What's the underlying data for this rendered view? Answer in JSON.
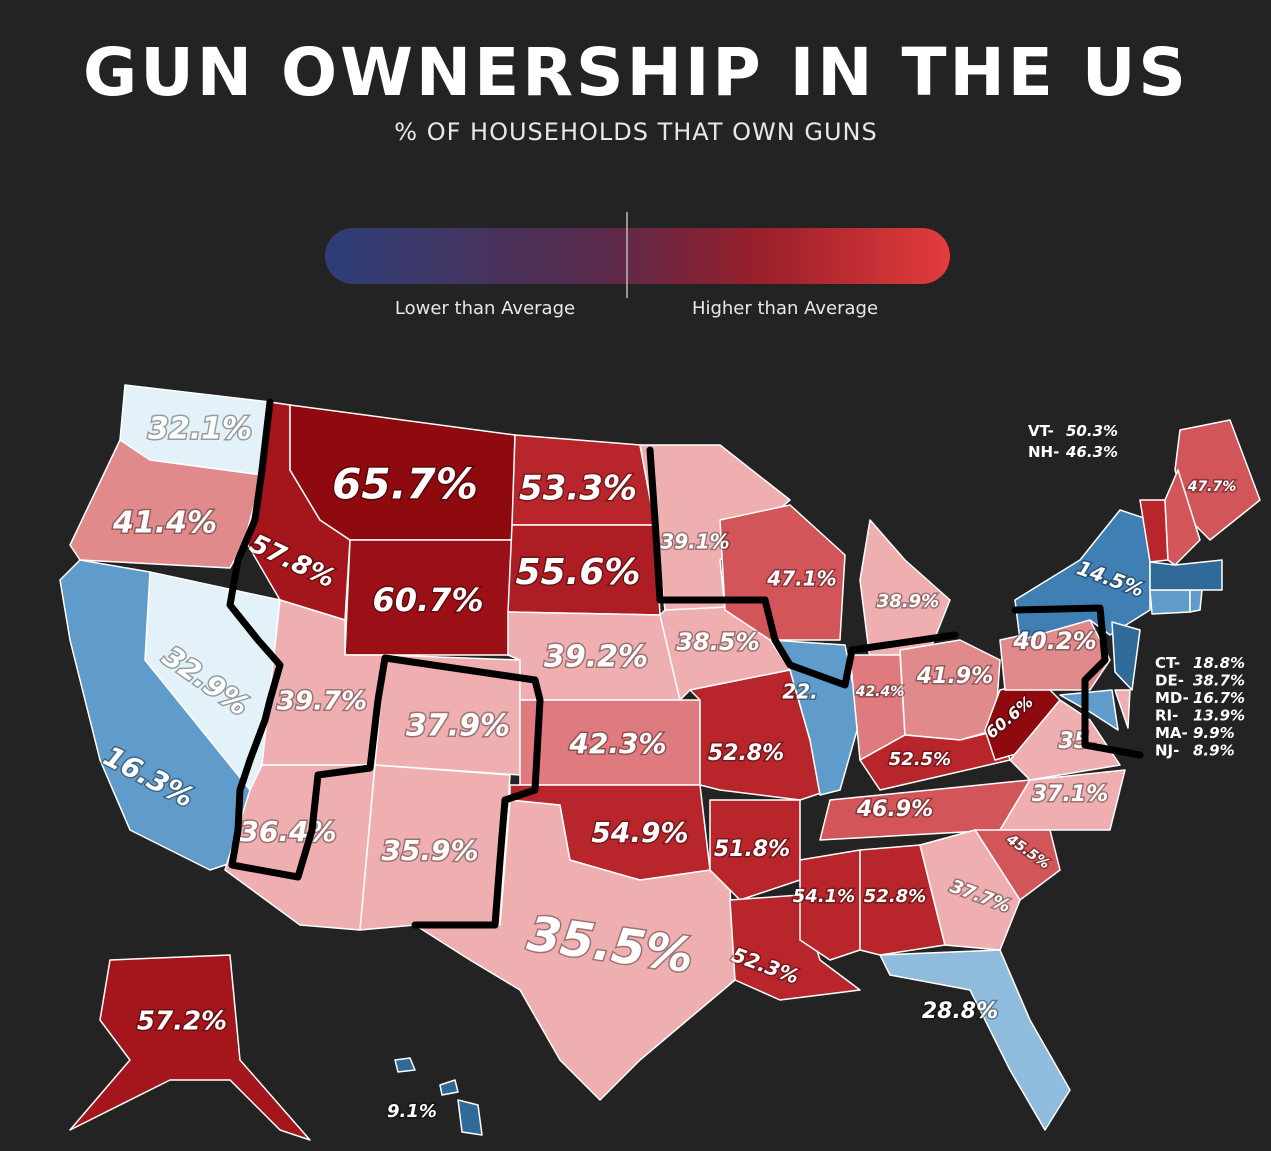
{
  "header": {
    "title": "GUN OWNERSHIP IN THE US",
    "subtitle": "% OF HOUSEHOLDS THAT OWN GUNS"
  },
  "legend": {
    "low": "Lower than Average",
    "high": "Higher than Average"
  },
  "states": [
    {
      "label": "32.1%",
      "color": "#e3f1f8"
    },
    {
      "label": "41.4%",
      "color": "#e08a8c"
    },
    {
      "label": "57.8%",
      "color": "#a5161c"
    },
    {
      "label": "65.7%",
      "color": "#8e0a0f"
    },
    {
      "label": "53.3%",
      "color": "#b8262c"
    },
    {
      "label": "60.7%",
      "color": "#9b1016"
    },
    {
      "label": "55.6%",
      "color": "#ad1d23"
    },
    {
      "label": "32.9%",
      "color": "#e3f1f8"
    },
    {
      "label": "16.3%",
      "color": "#5f9ccb"
    },
    {
      "label": "39.7%",
      "color": "#efaeb0"
    },
    {
      "label": "37.9%",
      "color": "#efaeb0"
    },
    {
      "label": "39.2%",
      "color": "#efaeb0"
    },
    {
      "label": "42.3%",
      "color": "#df7b7e"
    },
    {
      "label": "36.4%",
      "color": "#efaeb0"
    },
    {
      "label": "35.9%",
      "color": "#efaeb0"
    },
    {
      "label": "35.5%",
      "color": "#efaeb0"
    },
    {
      "label": "54.9%",
      "color": "#b8262c"
    },
    {
      "label": "39.1%",
      "color": "#efaeb0"
    },
    {
      "label": "38.5%",
      "color": "#efaeb0"
    },
    {
      "label": "52.8%",
      "color": "#b8262c"
    },
    {
      "label": "51.8%",
      "color": "#b8262c"
    },
    {
      "label": "52.3%",
      "color": "#b8262c"
    },
    {
      "label": "54.1%",
      "color": "#b8262c"
    },
    {
      "label": "52.8%",
      "color": "#b8262c"
    },
    {
      "label": "47.1%",
      "color": "#d2555a"
    },
    {
      "label": "22.",
      "color": "#5f9ccb"
    },
    {
      "label": "38.9%",
      "color": "#efaeb0"
    },
    {
      "label": "42.4%",
      "color": "#df7b7e"
    },
    {
      "label": "41.9%",
      "color": "#e08a8c"
    },
    {
      "label": "52.5%",
      "color": "#b8262c"
    },
    {
      "label": "46.9%",
      "color": "#d2555a"
    },
    {
      "label": "60.6%",
      "color": "#8e0a0f"
    },
    {
      "label": "40.2%",
      "color": "#e08a8c"
    },
    {
      "label": "35.",
      "color": "#efaeb0"
    },
    {
      "label": "37.1%",
      "color": "#efaeb0"
    },
    {
      "label": "45.5%",
      "color": "#d2555a"
    },
    {
      "label": "37.7%",
      "color": "#efaeb0"
    },
    {
      "label": "28.8%",
      "color": "#8fbcdc"
    },
    {
      "label": "14.5%",
      "color": "#3f7fb3"
    },
    {
      "label": "47.7%",
      "color": "#d2555a"
    },
    {
      "label": "57.2%",
      "color": "#a5161c"
    },
    {
      "label": "9.1%",
      "color": "#2f6a99"
    }
  ],
  "northeast": [
    {
      "abbr": "VT-",
      "value": "50.3%",
      "color": "#b8262c"
    },
    {
      "abbr": "NH-",
      "value": "46.3%",
      "color": "#d2555a"
    },
    {
      "abbr": "CT-",
      "value": "18.8%",
      "color": "#5f9ccb"
    },
    {
      "abbr": "DE-",
      "value": "38.7%",
      "color": "#efaeb0"
    },
    {
      "abbr": "MD-",
      "value": "16.7%",
      "color": "#5f9ccb"
    },
    {
      "abbr": "RI-",
      "value": "13.9%",
      "color": "#5f9ccb"
    },
    {
      "abbr": "MA-",
      "value": "9.9%",
      "color": "#2f6a99"
    },
    {
      "abbr": "NJ-",
      "value": "8.9%",
      "color": "#2f6a99"
    }
  ]
}
